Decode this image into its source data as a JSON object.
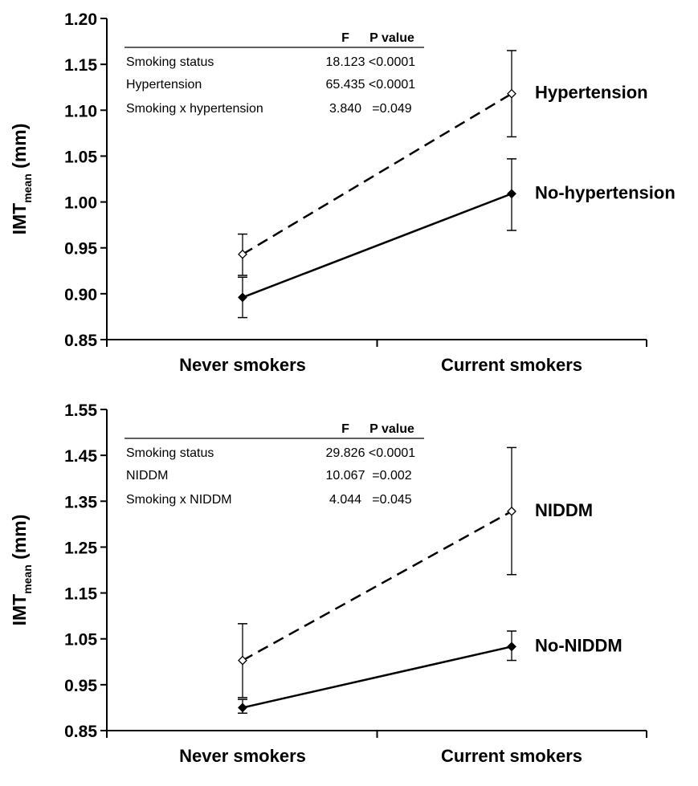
{
  "chart_data": [
    {
      "type": "line",
      "ylabel": "IMT",
      "ylabel_sub": "mean",
      "ylabel_unit": "(mm)",
      "categories": [
        "Never smokers",
        "Current smokers"
      ],
      "ylim": [
        0.85,
        1.2
      ],
      "yticks": [
        "0.85",
        "0.90",
        "0.95",
        "1.00",
        "1.05",
        "1.10",
        "1.15",
        "1.20"
      ],
      "series": [
        {
          "name": "Hypertension",
          "style": "dashed",
          "marker": "open-diamond",
          "values": [
            0.943,
            1.118
          ],
          "err_low": [
            0.92,
            1.071
          ],
          "err_high": [
            0.965,
            1.165
          ]
        },
        {
          "name": "No-hypertension",
          "style": "solid",
          "marker": "filled-diamond",
          "values": [
            0.896,
            1.009
          ],
          "err_low": [
            0.874,
            0.969
          ],
          "err_high": [
            0.918,
            1.047
          ]
        }
      ],
      "stats_table": {
        "header": [
          "",
          "F",
          "P value"
        ],
        "rows": [
          [
            "Smoking status",
            "18.123",
            "<0.0001"
          ],
          [
            "Hypertension",
            "65.435",
            "<0.0001"
          ],
          [
            "Smoking x hypertension",
            "3.840",
            "=0.049"
          ]
        ]
      },
      "grid": false,
      "legend": "inline-right"
    },
    {
      "type": "line",
      "ylabel": "IMT",
      "ylabel_sub": "mean",
      "ylabel_unit": "(mm)",
      "categories": [
        "Never smokers",
        "Current smokers"
      ],
      "ylim": [
        0.85,
        1.55
      ],
      "yticks": [
        "0.85",
        "0.95",
        "1.05",
        "1.15",
        "1.25",
        "1.35",
        "1.45",
        "1.55"
      ],
      "series": [
        {
          "name": "NIDDM",
          "style": "dashed",
          "marker": "open-diamond",
          "values": [
            1.003,
            1.328
          ],
          "err_low": [
            0.922,
            1.19
          ],
          "err_high": [
            1.083,
            1.467
          ]
        },
        {
          "name": "No-NIDDM",
          "style": "solid",
          "marker": "filled-diamond",
          "values": [
            0.9,
            1.033
          ],
          "err_low": [
            0.888,
            1.003
          ],
          "err_high": [
            0.918,
            1.067
          ]
        }
      ],
      "stats_table": {
        "header": [
          "",
          "F",
          "P value"
        ],
        "rows": [
          [
            "Smoking status",
            "29.826",
            "<0.0001"
          ],
          [
            "NIDDM",
            "10.067",
            "=0.002"
          ],
          [
            "Smoking x NIDDM",
            "4.044",
            "=0.045"
          ]
        ]
      },
      "grid": false,
      "legend": "inline-right"
    }
  ]
}
